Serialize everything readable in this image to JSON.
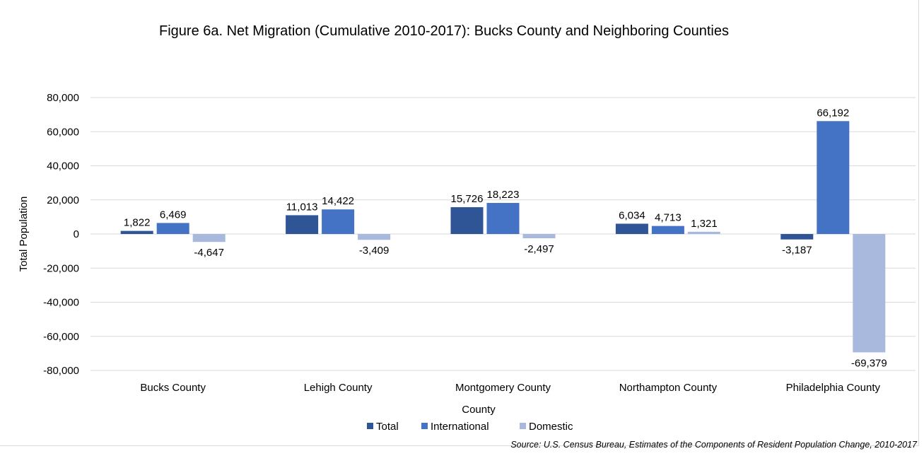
{
  "chart_data": {
    "type": "bar",
    "title": "Figure 6a. Net Migration (Cumulative 2010-2017): Bucks County and Neighboring Counties",
    "xlabel": "County",
    "ylabel": "Total Population",
    "categories": [
      "Bucks County",
      "Lehigh County",
      "Montgomery County",
      "Northampton County",
      "Philadelphia County"
    ],
    "series": [
      {
        "name": "Total",
        "color": "#2f5597",
        "values": [
          1822,
          11013,
          15726,
          6034,
          -3187
        ]
      },
      {
        "name": "International",
        "color": "#4472c4",
        "values": [
          6469,
          14422,
          18223,
          4713,
          66192
        ]
      },
      {
        "name": "Domestic",
        "color": "#a9b9de",
        "values": [
          -4647,
          -3409,
          -2497,
          1321,
          -69379
        ]
      }
    ],
    "data_labels": [
      [
        "1,822",
        "11,013",
        "15,726",
        "6,034",
        "-3,187"
      ],
      [
        "6,469",
        "14,422",
        "18,223",
        "4,713",
        "66,192"
      ],
      [
        "-4,647",
        "-3,409",
        "-2,497",
        "1,321",
        "-69,379"
      ]
    ],
    "ylim": [
      -80000,
      80000
    ],
    "yticks": [
      80000,
      60000,
      40000,
      20000,
      0,
      -20000,
      -40000,
      -60000,
      -80000
    ],
    "ytick_labels": [
      "80,000",
      "60,000",
      "40,000",
      "20,000",
      "0",
      "-20,000",
      "-40,000",
      "-60,000",
      "-80,000"
    ],
    "grid": true,
    "legend_position": "bottom"
  },
  "source": "Source: U.S. Census Bureau, Estimates of the Components of Resident Population Change, 2010-2017"
}
